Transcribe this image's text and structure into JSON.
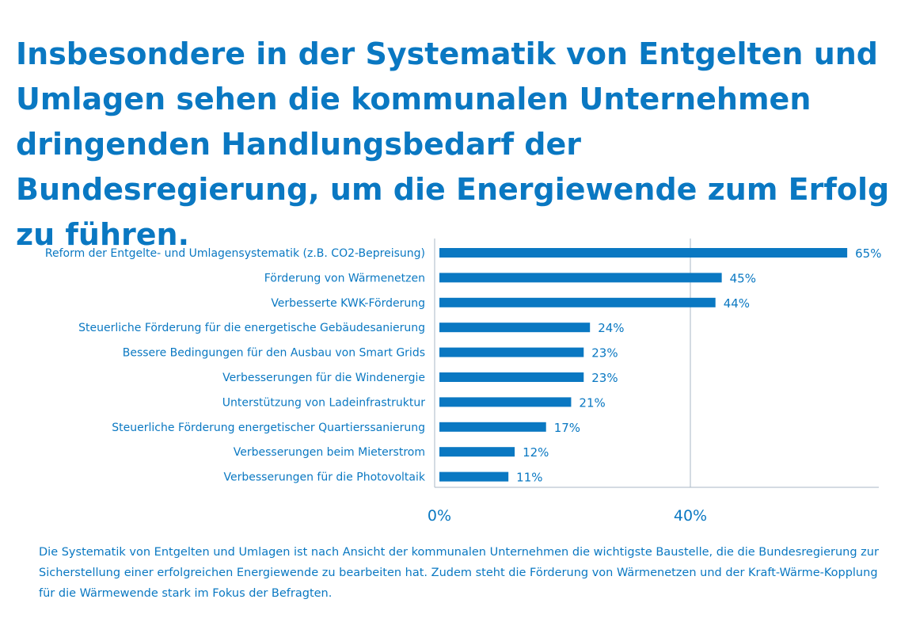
{
  "headline": "Insbesondere in der Systematik von Entgelten und Umlagen sehen die kommunalen Unternehmen dringenden Handlungsbedarf der Bundesregierung, um die Energiewende zum Erfolg zu führen.",
  "caption": "Die Systematik von Entgelten und  Umlagen ist nach Ansicht der kommunalen Unternehmen die wichtigste Baustelle, die die Bundesregierung zur Sicherstellung einer erfolgreichen Energiewende zu bearbeiten hat. Zudem steht die Förderung von Wärmenetzen und der Kraft-Wärme-Kopplung für die Wärmewende stark im Fokus der Befragten.",
  "colors": {
    "accent": "#0a78c2",
    "axis": "#a9b7c6"
  },
  "chart_data": {
    "type": "bar",
    "orientation": "horizontal",
    "categories": [
      "Reform der Entgelte- und Umlagensystematik (z.B. CO2-Bepreisung)",
      "Förderung von Wärmenetzen",
      "Verbesserte KWK-Förderung",
      "Steuerliche Förderung für die energetische Gebäudesanierung",
      "Bessere Bedingungen für den Ausbau von Smart Grids",
      "Verbesserungen für die Windenergie",
      "Unterstützung von Ladeinfrastruktur",
      "Steuerliche Förderung energetischer Quartierssanierung",
      "Verbesserungen beim Mieterstrom",
      "Verbesserungen für die Photovoltaik"
    ],
    "values": [
      65,
      45,
      44,
      24,
      23,
      23,
      21,
      17,
      12,
      11
    ],
    "value_labels": [
      "65%",
      "45%",
      "44%",
      "24%",
      "23%",
      "23%",
      "21%",
      "17%",
      "12%",
      "11%"
    ],
    "xticks": [
      0,
      40
    ],
    "xtick_labels": [
      "0%",
      "40%"
    ],
    "xlim": [
      0,
      70
    ],
    "gridlines": [
      40
    ],
    "color": "#0a78c2"
  }
}
